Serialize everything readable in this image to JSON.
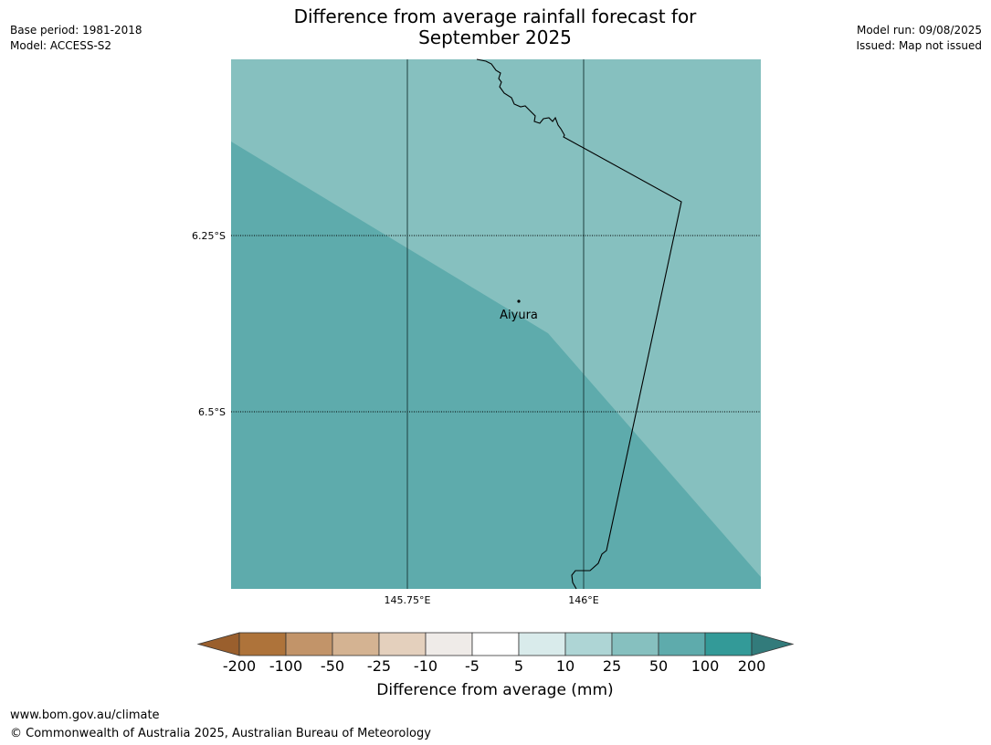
{
  "title": "Difference from average rainfall forecast for\nSeptember 2025",
  "meta_left": {
    "base_period": "Base period: 1981-2018",
    "model": "Model: ACCESS-S2"
  },
  "meta_right": {
    "model_run": "Model run: 09/08/2025",
    "issued": "Issued: Map not issued"
  },
  "map": {
    "lat_labels": [
      "6.25°S",
      "6.5°S"
    ],
    "lon_labels": [
      "145.75°E",
      "146°E"
    ],
    "place": {
      "name": "Aiyura"
    },
    "regions": [
      {
        "category": "25 to 50",
        "color": "#86c0bf"
      },
      {
        "category": "50 to 100",
        "color": "#5eabac"
      }
    ]
  },
  "colorbar": {
    "label": "Difference from average (mm)",
    "ticks": [
      "-200",
      "-100",
      "-50",
      "-25",
      "-10",
      "-5",
      "5",
      "10",
      "25",
      "50",
      "100",
      "200"
    ],
    "under_color": "#9a5f2d",
    "over_color": "#327b7b",
    "colors": [
      "#ae733a",
      "#c29469",
      "#d4b392",
      "#e4d0bd",
      "#efebe8",
      "#ffffff",
      "#d9ebeb",
      "#aed5d5",
      "#86c0bf",
      "#5eabac",
      "#339a98"
    ]
  },
  "footer": {
    "url": "www.bom.gov.au/climate",
    "copyright": "© Commonwealth of Australia 2025, Australian Bureau of Meteorology"
  }
}
